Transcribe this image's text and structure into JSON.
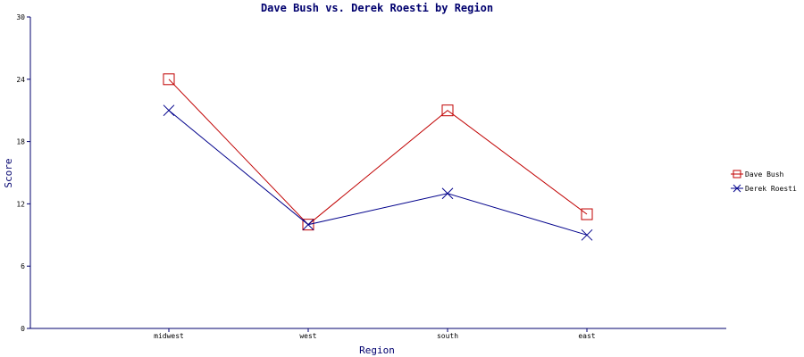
{
  "chart_data": {
    "type": "line",
    "title": "Dave Bush vs. Derek Roesti by Region",
    "xlabel": "Region",
    "ylabel": "Score",
    "categories": [
      "midwest",
      "west",
      "south",
      "east"
    ],
    "ylim": [
      0,
      30
    ],
    "yticks": [
      "0",
      "6",
      "12",
      "18",
      "24",
      "30"
    ],
    "grid": false,
    "legend_position": "right",
    "series": [
      {
        "name": "Dave Bush",
        "values": [
          24,
          10,
          21,
          11
        ],
        "color": "#c00000",
        "marker": "square"
      },
      {
        "name": "Derek Roesti",
        "values": [
          21,
          10,
          13,
          9
        ],
        "color": "#00008b",
        "marker": "x"
      }
    ],
    "axis_color": "#00006e"
  }
}
